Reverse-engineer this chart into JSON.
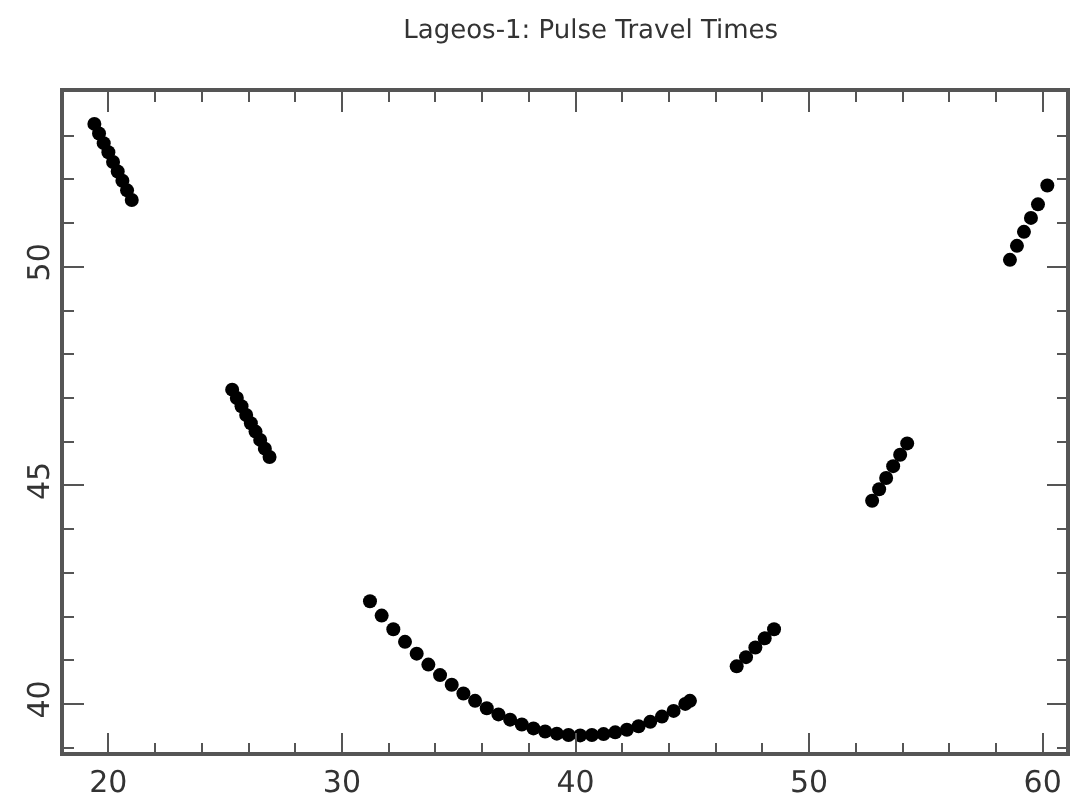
{
  "chart_data": {
    "type": "scatter",
    "title": "Lageos-1: Pulse Travel Times",
    "x": [
      19.4,
      19.6,
      19.8,
      20.0,
      20.2,
      20.4,
      20.6,
      20.8,
      21.0,
      25.3,
      25.5,
      25.7,
      25.9,
      26.1,
      26.3,
      26.5,
      26.7,
      26.9,
      31.2,
      31.7,
      32.2,
      32.7,
      33.2,
      33.7,
      34.2,
      34.7,
      35.2,
      35.7,
      36.2,
      36.7,
      37.2,
      37.7,
      38.2,
      38.7,
      39.2,
      39.7,
      40.2,
      40.7,
      41.2,
      41.7,
      42.2,
      42.7,
      43.2,
      43.7,
      44.2,
      44.7,
      44.9,
      46.9,
      47.3,
      47.7,
      48.1,
      48.5,
      52.7,
      53.0,
      53.3,
      53.6,
      53.9,
      54.2,
      58.6,
      58.9,
      59.2,
      59.5,
      59.8,
      60.2
    ],
    "values": [
      53.27,
      53.05,
      52.83,
      52.62,
      52.4,
      52.18,
      51.97,
      51.75,
      51.53,
      47.19,
      47.0,
      46.81,
      46.61,
      46.42,
      46.23,
      46.04,
      45.84,
      45.65,
      42.35,
      42.02,
      41.71,
      41.42,
      41.15,
      40.9,
      40.66,
      40.44,
      40.24,
      40.07,
      39.9,
      39.76,
      39.64,
      39.53,
      39.44,
      39.37,
      39.32,
      39.29,
      39.28,
      39.29,
      39.31,
      39.35,
      39.41,
      39.49,
      39.59,
      39.71,
      39.84,
      40.0,
      40.07,
      40.86,
      41.07,
      41.29,
      41.5,
      41.71,
      44.65,
      44.91,
      45.17,
      45.44,
      45.7,
      45.96,
      50.16,
      50.48,
      50.8,
      51.12,
      51.43,
      51.86
    ],
    "color": "#000000",
    "marker": "circle",
    "xlim": [
      18.1,
      61.0
    ],
    "ylim": [
      38.9,
      54.0
    ],
    "xticks": [
      20,
      30,
      40,
      50,
      60
    ],
    "yticks": [
      40,
      45,
      50
    ]
  }
}
